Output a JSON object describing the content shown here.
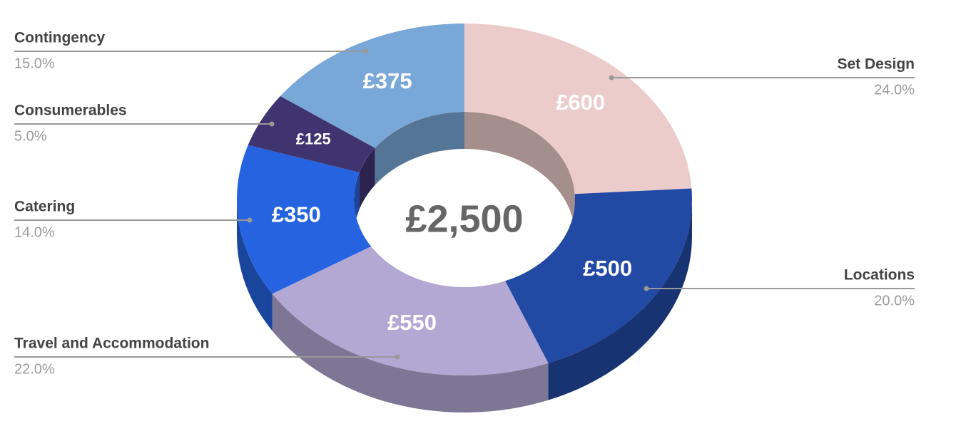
{
  "chart_data": {
    "type": "donut3d",
    "categories": [
      "Set Design",
      "Locations",
      "Travel and Accommodation",
      "Catering",
      "Consumerables",
      "Contingency"
    ],
    "values": [
      600,
      500,
      550,
      350,
      125,
      375
    ],
    "value_labels": [
      "£600",
      "£500",
      "£550",
      "£350",
      "£125",
      "£375"
    ],
    "percent_labels": [
      "24.0%",
      "20.0%",
      "22.0%",
      "14.0%",
      "5.0%",
      "15.0%"
    ],
    "colors": [
      "#ecccca",
      "#2249a3",
      "#b3a8d4",
      "#2563e0",
      "#3f3470",
      "#79a7d8"
    ],
    "center_label": "£2,500"
  }
}
